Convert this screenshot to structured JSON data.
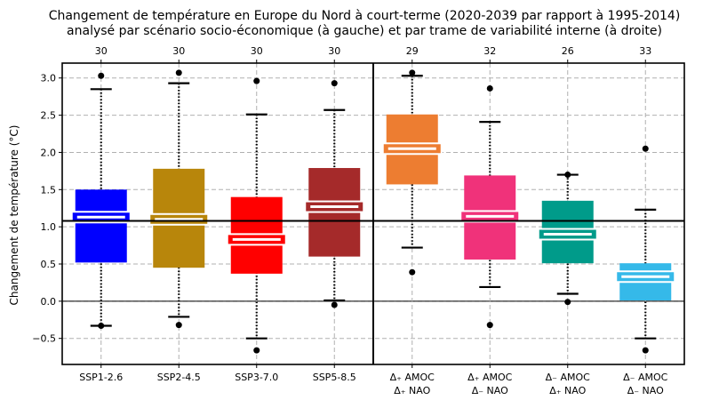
{
  "chart_data": {
    "type": "box",
    "title": "Changement de température en Europe du Nord à court-terme (2020-2039 par rapport à 1995-2014)",
    "subtitle": "analysé par scénario socio-économique (à gauche) et par trame de variabilité interne (à droite)",
    "ylabel": "Changement de température (°C)",
    "ylim": [
      -0.85,
      3.2
    ],
    "yticks": [
      -0.5,
      0.0,
      0.5,
      1.0,
      1.5,
      2.0,
      2.5,
      3.0
    ],
    "ytick_labels": [
      "−0.5",
      "0.0",
      "0.5",
      "1.0",
      "1.5",
      "2.0",
      "2.5",
      "3.0"
    ],
    "grid": true,
    "reference_line": 1.08,
    "divider_after_index": 3,
    "categories": [
      {
        "label": "SSP1-2.6",
        "label2": "",
        "count": "30",
        "color": "#0000ff",
        "q1": 0.52,
        "median": 1.13,
        "q3": 1.5,
        "wlo": -0.33,
        "whi": 2.85,
        "outliers": [
          3.03,
          -0.33
        ]
      },
      {
        "label": "SSP2-4.5",
        "label2": "",
        "count": "30",
        "color": "#b8860b",
        "q1": 0.45,
        "median": 1.1,
        "q3": 1.78,
        "wlo": -0.21,
        "whi": 2.93,
        "outliers": [
          3.07,
          -0.32
        ]
      },
      {
        "label": "SSP3-7.0",
        "label2": "",
        "count": "30",
        "color": "#ff0000",
        "q1": 0.37,
        "median": 0.83,
        "q3": 1.4,
        "wlo": -0.5,
        "whi": 2.51,
        "outliers": [
          2.96,
          -0.66
        ]
      },
      {
        "label": "SSP5-8.5",
        "label2": "",
        "count": "30",
        "color": "#a52a2a",
        "q1": 0.6,
        "median": 1.27,
        "q3": 1.79,
        "wlo": 0.01,
        "whi": 2.57,
        "outliers": [
          2.93,
          -0.05
        ]
      },
      {
        "label": "Δ₊ AMOC",
        "label2": "Δ₊ NAO",
        "count": "29",
        "color": "#ed7d31",
        "q1": 1.57,
        "median": 2.05,
        "q3": 2.51,
        "wlo": 0.72,
        "whi": 3.03,
        "outliers": [
          3.07,
          0.39
        ]
      },
      {
        "label": "Δ₊ AMOC",
        "label2": "Δ₋ NAO",
        "count": "32",
        "color": "#f0327a",
        "q1": 0.56,
        "median": 1.14,
        "q3": 1.69,
        "wlo": 0.19,
        "whi": 2.41,
        "outliers": [
          2.86,
          -0.32
        ]
      },
      {
        "label": "Δ₋ AMOC",
        "label2": "Δ₊ NAO",
        "count": "26",
        "color": "#009b8a",
        "q1": 0.51,
        "median": 0.9,
        "q3": 1.35,
        "wlo": 0.1,
        "whi": 1.7,
        "outliers": [
          1.7,
          -0.01
        ]
      },
      {
        "label": "Δ₋ AMOC",
        "label2": "Δ₋ NAO",
        "count": "33",
        "color": "#35b9e9",
        "q1": 0.01,
        "median": 0.33,
        "q3": 0.51,
        "wlo": -0.5,
        "whi": 1.23,
        "outliers": [
          2.05,
          -0.66
        ]
      }
    ]
  }
}
